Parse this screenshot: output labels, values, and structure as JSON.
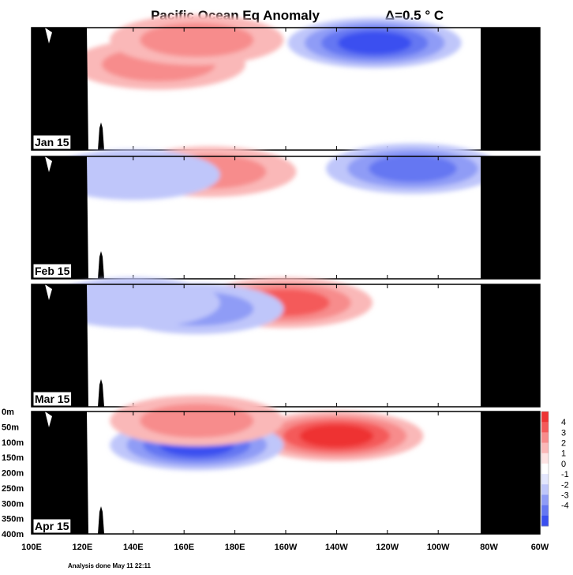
{
  "chart_data": {
    "type": "heatmap",
    "title": "Pacific Ocean Eq Anomaly",
    "contour_interval_label": "Δ=0.5 ° C",
    "footnote": "Analysis done May 11 22:11",
    "x_tick_labels": [
      "100E",
      "120E",
      "140E",
      "160E",
      "180E",
      "160W",
      "140W",
      "120W",
      "100W",
      "80W",
      "60W"
    ],
    "x_range": [
      "100E",
      "60W"
    ],
    "y_tick_labels": [
      "0m",
      "50m",
      "100m",
      "150m",
      "200m",
      "250m",
      "300m",
      "350m",
      "400m"
    ],
    "y_range_m": [
      0,
      400
    ],
    "colorbar": {
      "labels": [
        "4",
        "3",
        "2",
        "1",
        "0",
        "-1",
        "-2",
        "-3",
        "-4"
      ],
      "colors": [
        "#ee3333",
        "#f45a5a",
        "#f78c8c",
        "#fab8b8",
        "#fde3e3",
        "#ffffff",
        "#e3e6fd",
        "#bfc6fa",
        "#8f9cf6",
        "#6577f2",
        "#3a4ff0"
      ]
    },
    "panels": [
      {
        "label": "Jan 15",
        "features": [
          {
            "sign": "negative",
            "lon_center": "125W",
            "depth_m": 50,
            "peak_anomaly": -3.5
          },
          {
            "sign": "positive",
            "lon_center": "150E",
            "depth_m": 120,
            "peak_anomaly": 2.0
          },
          {
            "sign": "positive",
            "lon_center": "165E",
            "depth_m": 40,
            "peak_anomaly": 1.5
          }
        ]
      },
      {
        "label": "Feb 15",
        "features": [
          {
            "sign": "negative",
            "lon_center": "110W",
            "depth_m": 40,
            "peak_anomaly": -2.5
          },
          {
            "sign": "positive",
            "lon_center": "170E",
            "depth_m": 50,
            "peak_anomaly": 2.0
          },
          {
            "sign": "negative",
            "lon_center": "140E",
            "depth_m": 60,
            "peak_anomaly": -1.0
          }
        ]
      },
      {
        "label": "Mar 15",
        "features": [
          {
            "sign": "positive",
            "lon_center": "160W",
            "depth_m": 60,
            "peak_anomaly": 3.0
          },
          {
            "sign": "negative",
            "lon_center": "165E",
            "depth_m": 80,
            "peak_anomaly": -1.5
          },
          {
            "sign": "negative",
            "lon_center": "140E",
            "depth_m": 60,
            "peak_anomaly": -1.0
          }
        ]
      },
      {
        "label": "Apr 15",
        "features": [
          {
            "sign": "positive",
            "lon_center": "140W",
            "depth_m": 80,
            "peak_anomaly": 4.0
          },
          {
            "sign": "negative",
            "lon_center": "165E",
            "depth_m": 110,
            "peak_anomaly": -3.5
          },
          {
            "sign": "positive",
            "lon_center": "165E",
            "depth_m": 30,
            "peak_anomaly": 1.5
          }
        ]
      }
    ]
  }
}
